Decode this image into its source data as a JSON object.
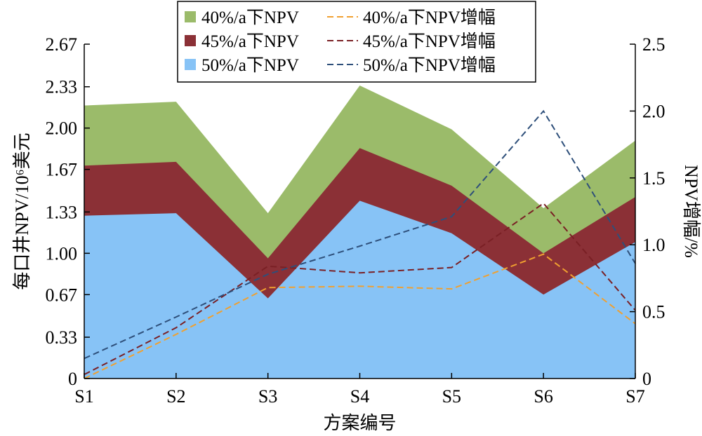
{
  "chart_data": {
    "type": "area",
    "categories": [
      "S1",
      "S2",
      "S3",
      "S4",
      "S5",
      "S6",
      "S7"
    ],
    "xlabel": "方案编号",
    "ylabel_left": "每口井NPV/10⁶美元",
    "ylabel_right": "NPV增幅/%",
    "left_axis": {
      "ylim": [
        0,
        2.67
      ],
      "ticks": [
        0,
        0.33,
        0.67,
        1.0,
        1.33,
        1.67,
        2.0,
        2.33,
        2.67
      ],
      "tick_labels": [
        "0",
        "0.33",
        "0.67",
        "1.00",
        "1.33",
        "1.67",
        "2.00",
        "2.33",
        "2.67"
      ]
    },
    "right_axis": {
      "ylim": [
        0,
        2.5
      ],
      "ticks": [
        0,
        0.5,
        1.0,
        1.5,
        2.0,
        2.5
      ],
      "tick_labels": [
        "0",
        "0.5",
        "1.0",
        "1.5",
        "2.0",
        "2.5"
      ]
    },
    "area_series": [
      {
        "name": "40%/a下NPV",
        "color": "#9bbb6a",
        "values": [
          2.18,
          2.21,
          1.32,
          2.34,
          1.99,
          1.36,
          1.9
        ]
      },
      {
        "name": "45%/a下NPV",
        "color": "#8b3036",
        "values": [
          1.7,
          1.73,
          0.96,
          1.84,
          1.54,
          1.0,
          1.45
        ]
      },
      {
        "name": "50%/a下NPV",
        "color": "#87c3f6",
        "values": [
          1.3,
          1.32,
          0.64,
          1.42,
          1.16,
          0.67,
          1.09
        ]
      }
    ],
    "line_series": [
      {
        "name": "40%/a下NPV增幅",
        "color": "#f0a030",
        "values": [
          0.0,
          0.33,
          0.68,
          0.69,
          0.67,
          0.93,
          0.41
        ]
      },
      {
        "name": "45%/a下NPV增幅",
        "color": "#7a2025",
        "values": [
          0.03,
          0.38,
          0.84,
          0.79,
          0.83,
          1.31,
          0.51
        ]
      },
      {
        "name": "50%/a下NPV增幅",
        "color": "#2e4f7a",
        "values": [
          0.15,
          0.46,
          0.78,
          0.99,
          1.21,
          2.0,
          0.86
        ]
      }
    ],
    "grid": false,
    "legend_position": "top-center"
  }
}
